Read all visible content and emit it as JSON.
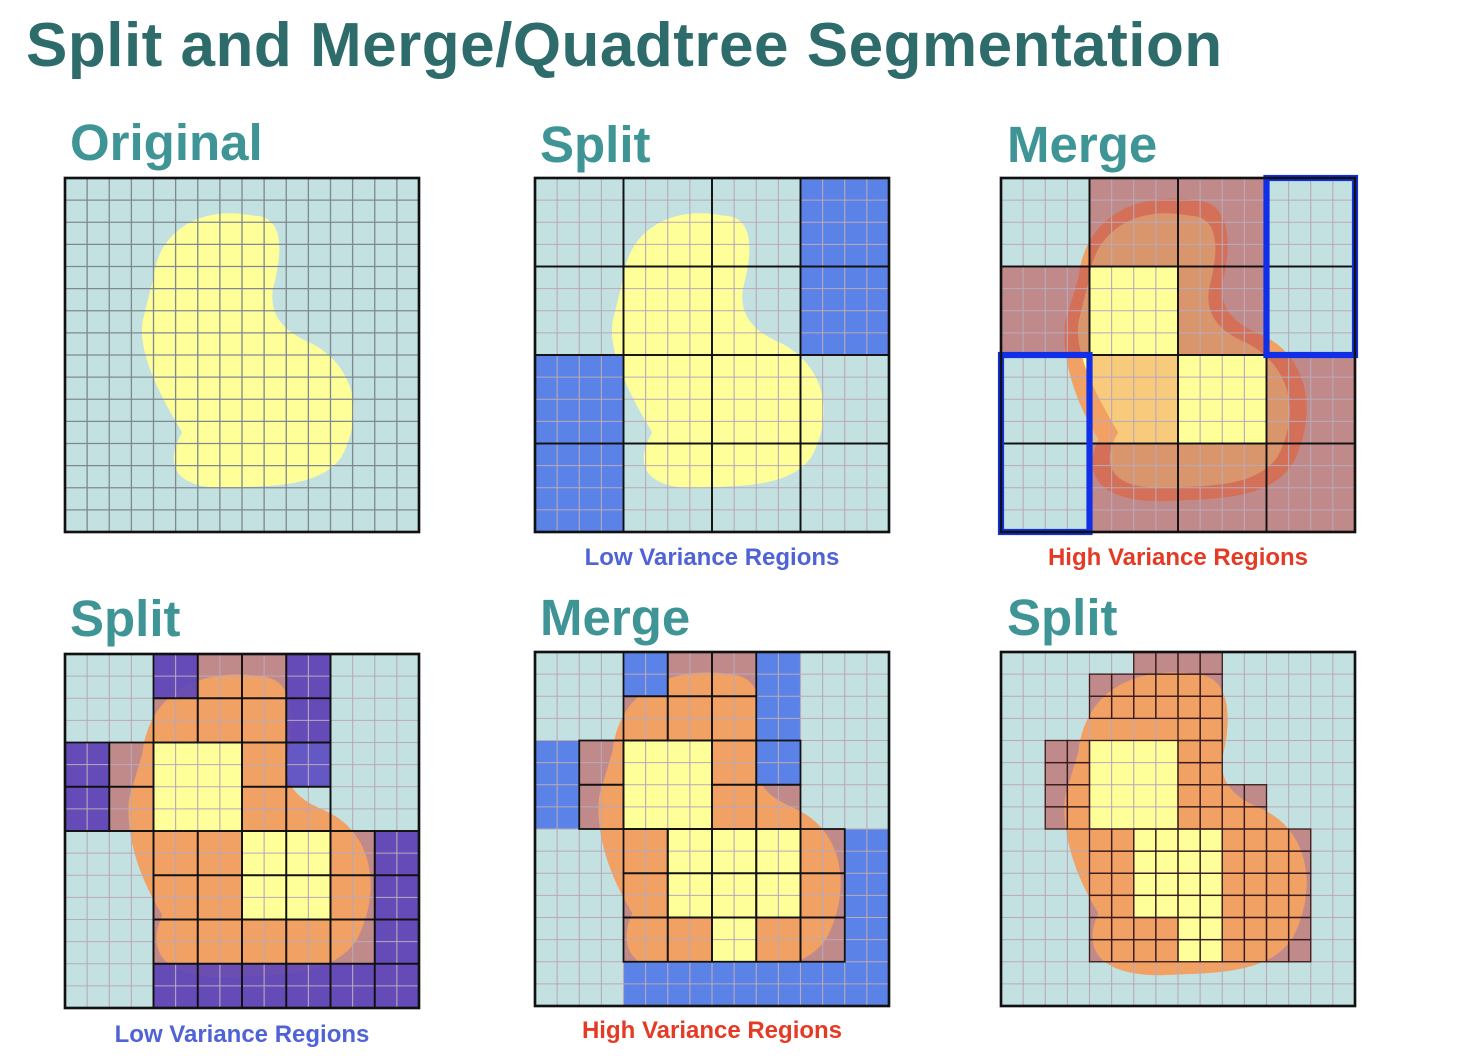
{
  "title": "Split and Merge/Quadtree Segmentation",
  "panels": [
    {
      "label": "Original",
      "caption": ""
    },
    {
      "label": "Split",
      "caption": "Low Variance Regions"
    },
    {
      "label": "Merge",
      "caption": "High Variance Regions"
    },
    {
      "label": "Split",
      "caption": "Low Variance Regions"
    },
    {
      "label": "Merge",
      "caption": "High Variance Regions"
    },
    {
      "label": "Split",
      "caption": ""
    }
  ],
  "colors": {
    "title": "#2e6b6b",
    "panel_label": "#3f9595",
    "background_region": "#c3e1e1",
    "object_blob": "#ffff9a",
    "low_variance": "#5b82e6",
    "low_variance_overlay": "#5440c0",
    "high_variance": "#c05050",
    "merge_outline": "#1030e8",
    "low_caption": "#4f63d6",
    "high_caption": "#e53a24"
  }
}
